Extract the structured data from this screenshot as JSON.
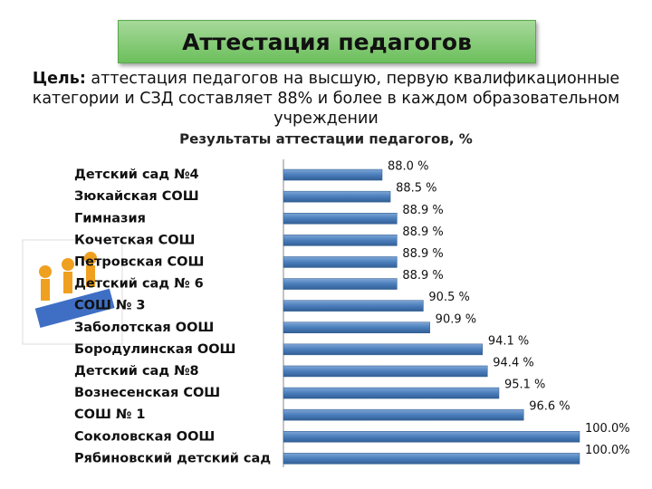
{
  "header": {
    "title": "Аттестация педагогов"
  },
  "goal": {
    "label": "Цель:",
    "text": "аттестация педагогов на высшую, первую квалификационные категории и СЗД составляет 88% и более в каждом образовательном учреждении"
  },
  "chart_data": {
    "type": "bar",
    "orientation": "horizontal",
    "title": "Результаты аттестации педагогов, %",
    "categories": [
      "Детский сад №4",
      "Зюкайская СОШ",
      "Гимназия",
      "Кочетская СОШ",
      "Петровская СОШ",
      "Детский сад № 6",
      "СОШ № 3",
      "Заболотская ООШ",
      "Бородулинская ООШ",
      "Детский сад №8",
      "Вознесенская СОШ",
      "СОШ № 1",
      "Соколовская ООШ",
      "Рябиновский детский сад"
    ],
    "values": [
      88.0,
      88.5,
      88.9,
      88.9,
      88.9,
      88.9,
      90.5,
      90.9,
      94.1,
      94.4,
      95.1,
      96.6,
      100.0,
      100.0
    ],
    "value_labels": [
      "88.0 %",
      "88.5 %",
      "88.9 %",
      "88.9 %",
      "88.9 %",
      "88.9 %",
      "90.5 %",
      "90.9 %",
      "94.1 %",
      "94.4 %",
      "95.1 %",
      "96.6 %",
      "100.0%",
      "100.0%"
    ],
    "xlim": [
      82,
      100
    ],
    "color": "#4a7ebb"
  }
}
